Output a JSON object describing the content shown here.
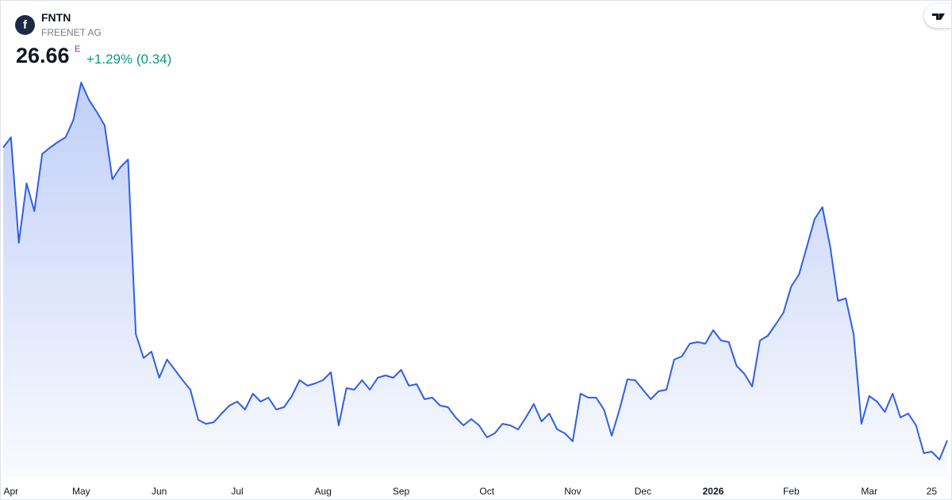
{
  "header": {
    "symbol": "FNTN",
    "name": "FREENET AG",
    "logo": "f",
    "price": "26.66",
    "price_flag": "E",
    "change": "+1.29% (0.34)"
  },
  "chart_data": {
    "type": "area",
    "color": "#2f5fe8",
    "values": [
      30.35,
      30.48,
      29.15,
      29.9,
      29.55,
      30.27,
      30.35,
      30.42,
      30.48,
      30.7,
      31.17,
      30.95,
      30.8,
      30.63,
      29.95,
      30.1,
      30.2,
      28.0,
      27.7,
      27.78,
      27.45,
      27.68,
      27.55,
      27.42,
      27.3,
      26.92,
      26.87,
      26.89,
      27.0,
      27.1,
      27.15,
      27.05,
      27.25,
      27.15,
      27.2,
      27.05,
      27.08,
      27.22,
      27.42,
      27.35,
      27.38,
      27.42,
      27.52,
      26.85,
      27.32,
      27.3,
      27.42,
      27.3,
      27.45,
      27.48,
      27.45,
      27.55,
      27.35,
      27.37,
      27.18,
      27.2,
      27.1,
      27.08,
      26.95,
      26.85,
      26.93,
      26.85,
      26.7,
      26.75,
      26.87,
      26.85,
      26.8,
      26.95,
      27.12,
      26.9,
      27.0,
      26.8,
      26.75,
      26.65,
      27.25,
      27.2,
      27.2,
      27.05,
      26.72,
      27.05,
      27.43,
      27.42,
      27.3,
      27.18,
      27.28,
      27.3,
      27.68,
      27.72,
      27.88,
      27.9,
      27.88,
      28.05,
      27.92,
      27.9,
      27.6,
      27.5,
      27.34,
      27.92,
      27.98,
      28.12,
      28.27,
      28.6,
      28.75,
      29.1,
      29.45,
      29.6,
      29.1,
      28.42,
      28.45,
      28.0,
      26.87,
      27.22,
      27.15,
      27.02,
      27.25,
      26.95,
      27.0,
      26.85,
      26.5,
      26.52,
      26.42,
      26.66
    ],
    "ylim": [
      26.2,
      32.2
    ],
    "xticks": [
      {
        "value": 1,
        "label": "Apr"
      },
      {
        "value": 10,
        "label": "May"
      },
      {
        "value": 20,
        "label": "Jun"
      },
      {
        "value": 30,
        "label": "Jul"
      },
      {
        "value": 41,
        "label": "Aug"
      },
      {
        "value": 51,
        "label": "Sep"
      },
      {
        "value": 62,
        "label": "Oct"
      },
      {
        "value": 73,
        "label": "Nov"
      },
      {
        "value": 82,
        "label": "Dec"
      },
      {
        "value": 91,
        "label": "2026"
      },
      {
        "value": 101,
        "label": "Feb"
      },
      {
        "value": 111,
        "label": "Mar"
      },
      {
        "value": 119,
        "label": "25"
      }
    ],
    "bold_xtick": "2026"
  }
}
